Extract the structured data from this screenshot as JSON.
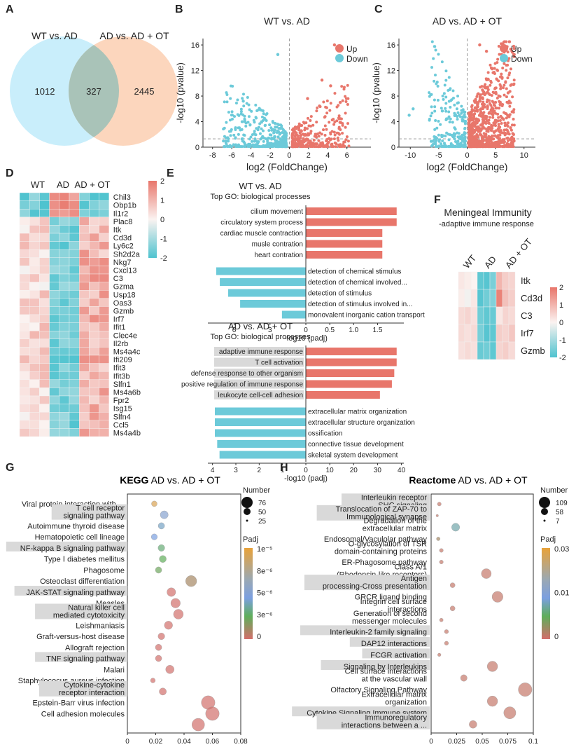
{
  "panels": {
    "A": "A",
    "B": "B",
    "C": "C",
    "D": "D",
    "E": "E",
    "F": "F",
    "G": "G",
    "H": "H"
  },
  "venn": {
    "left_label": "WT vs. AD",
    "right_label": "AD vs. AD + OT",
    "left_only": "1012",
    "overlap": "327",
    "right_only": "2445",
    "left_color": "#c9eefb",
    "right_color": "#fcd6bd",
    "overlap_color": "#a9c3b8"
  },
  "volcano_b": {
    "title": "WT vs. AD",
    "xlabel": "log2 (FoldChange)",
    "ylabel": "-log10 (pvalue)",
    "xticks": [
      "-8",
      "-6",
      "-4",
      "-2",
      "0",
      "2",
      "4",
      "6"
    ],
    "yticks": [
      "0",
      "4",
      "8",
      "12",
      "16"
    ],
    "legend_up": "Up",
    "legend_down": "Down",
    "up_color": "#e8766b",
    "down_color": "#6ccad9"
  },
  "volcano_c": {
    "title": "AD vs. AD + OT",
    "xlabel": "log2 (FoldChange)",
    "ylabel": "-log10 (pvalue)",
    "xticks": [
      "-10",
      "-5",
      "0",
      "5",
      "10"
    ],
    "yticks": [
      "0",
      "4",
      "8",
      "12",
      "16"
    ],
    "legend_up": "Up",
    "legend_down": "Down"
  },
  "heatmap_d": {
    "groups": [
      "WT",
      "AD",
      "AD + OT"
    ],
    "genes": [
      "Chil3",
      "Obp1b",
      "Il1r2",
      "Plac8",
      "Itk",
      "Cd3d",
      "Ly6c2",
      "Sh2d2a",
      "Nkg7",
      "Cxcl13",
      "C3",
      "Gzma",
      "Usp18",
      "Oas3",
      "Gzmb",
      "Irf7",
      "Ifit1",
      "Clec4e",
      "Il2rb",
      "Ms4a4c",
      "Ifi209",
      "Ifit3",
      "Ifit3b",
      "Slfn1",
      "Ms4a6b",
      "Fpr2",
      "Isg15",
      "Slfn4",
      "Ccl5",
      "Ms4a4b"
    ],
    "scale_labels": [
      "2",
      "1",
      "0",
      "-1",
      "-2"
    ],
    "high_color": "#e8766b",
    "low_color": "#4fc3cf"
  },
  "go_wt": {
    "title": "WT vs. AD",
    "subtitle": "Top GO: biological processes",
    "up_terms": [
      "cilium movement",
      "circulatory system process",
      "cardiac muscle contraction",
      "musle contration",
      "heart contration"
    ],
    "up_values": [
      1.9,
      1.9,
      1.6,
      1.6,
      1.6
    ],
    "down_terms": [
      "detection of chemical stimulus",
      "detection of chemical involved...",
      "detection of stimulus",
      "detection of stimulus involved in...",
      "monovalent inorganic cation transport"
    ],
    "down_values": [
      7.5,
      7.2,
      6.5,
      5.5,
      2.0
    ],
    "left_ticks": [
      "6",
      "3",
      "0"
    ],
    "right_ticks": [
      "0.5",
      "1.0",
      "1.5"
    ],
    "xlabel": "-log10 (padj)"
  },
  "go_ot": {
    "title": "AD vs. AD + OT",
    "subtitle": "Top GO: biological processes",
    "up_terms": [
      "adaptive immune response",
      "T cell activation",
      "defense response to other organism",
      "positive  regulation of immune response",
      "leukocyte cell-cell adhesion"
    ],
    "up_values": [
      38,
      38,
      37,
      36,
      31
    ],
    "down_terms": [
      "extracellular matrix organization",
      "extracellular structure organization",
      "ossification",
      "connective tissue development",
      "skeletal system development"
    ],
    "down_values": [
      3.9,
      3.9,
      3.9,
      3.8,
      3.7
    ],
    "left_ticks": [
      "4",
      "3",
      "2",
      "1",
      "0"
    ],
    "right_ticks": [
      "10",
      "20",
      "30",
      "40"
    ],
    "xlabel": "-log10 (padj)"
  },
  "heatmap_f": {
    "title": "Meningeal  Immunity",
    "subtitle": "-adaptive immune response",
    "groups": [
      "WT",
      "AD",
      "AD + OT"
    ],
    "genes": [
      "Itk",
      "Cd3d",
      "C3",
      "Irf7",
      "Gzmb"
    ],
    "scale_labels": [
      "2",
      "1",
      "0",
      "-1",
      "-2"
    ]
  },
  "kegg": {
    "title_bold": "KEGG",
    "title_rest": " AD vs. AD + OT",
    "size_title": "Number",
    "size_labels": [
      "76",
      "50",
      "25"
    ],
    "color_title": "Padj",
    "color_labels": [
      "1e⁻⁵",
      "8e⁻⁶",
      "5e⁻⁶",
      "3e⁻⁶",
      "0"
    ],
    "xticks": [
      "0",
      "0.02",
      "0.04",
      "0.06",
      "0.08"
    ]
  },
  "reactome": {
    "title_bold": "Reactome",
    "title_rest": " AD vs. AD + OT",
    "size_title": "Number",
    "size_labels": [
      "109",
      "58",
      "7"
    ],
    "color_title": "Padj",
    "color_labels": [
      "0.03",
      "0.01",
      "0"
    ],
    "xticks": [
      "0",
      "0.025",
      "0.05",
      "0.075",
      "0.1"
    ]
  },
  "chart_data": [
    {
      "type": "bar",
      "title": "WT vs. AD",
      "terms": [
        "cilium movement",
        "circulatory system process",
        "cardiac muscle contraction",
        "musle contration",
        "heart contration",
        "detection of chemical stimulus",
        "detection of chemical involved...",
        "detection of stimulus",
        "detection of stimulus involved in...",
        "monovalent inorganic cation transport"
      ],
      "values": [
        1.9,
        1.9,
        1.6,
        1.6,
        1.6,
        7.5,
        7.2,
        6.5,
        5.5,
        2.0
      ],
      "xlabel": "-log10 (padj)"
    },
    {
      "type": "bar",
      "title": "AD vs. AD + OT",
      "terms": [
        "adaptive immune response",
        "T cell activation",
        "defense response to other organism",
        "positive  regulation of immune response",
        "leukocyte cell-cell adhesion",
        "extracellular matrix organization",
        "extracellular structure organization",
        "ossification",
        "connective tissue development",
        "skeletal system development"
      ],
      "values": [
        38,
        38,
        37,
        36,
        31,
        3.9,
        3.9,
        3.9,
        3.8,
        3.7
      ],
      "xlabel": "-log10 (padj)"
    },
    {
      "type": "scatter",
      "title": "KEGG AD vs. AD + OT",
      "xlim": [
        0,
        0.08
      ],
      "terms": [
        {
          "label": "Viral protein interaction with ...",
          "x": 0.019,
          "n": 25,
          "padj": 9.5e-06,
          "box": false
        },
        {
          "label": "T cell receptor signaling pathway",
          "x": 0.026,
          "n": 40,
          "padj": 6e-06,
          "box": true
        },
        {
          "label": "Autoimmune thyroid disease",
          "x": 0.024,
          "n": 30,
          "padj": 4.5e-06,
          "box": false
        },
        {
          "label": "Hematopoietic cell lineage",
          "x": 0.019,
          "n": 28,
          "padj": 5e-06,
          "box": false
        },
        {
          "label": "NF-kappa B signaling pathway",
          "x": 0.024,
          "n": 32,
          "padj": 3e-06,
          "box": true
        },
        {
          "label": "Type Ⅰ diabetes mellitus",
          "x": 0.025,
          "n": 34,
          "padj": 2.5e-06,
          "box": false
        },
        {
          "label": "Phagosome",
          "x": 0.022,
          "n": 30,
          "padj": 2.2e-06,
          "box": false
        },
        {
          "label": "Osteoclast differentiation",
          "x": 0.045,
          "n": 60,
          "padj": 1e-06,
          "box": false
        },
        {
          "label": "JAK-STAT signaling pathway",
          "x": 0.031,
          "n": 45,
          "padj": 5e-08,
          "box": true
        },
        {
          "label": "Measles",
          "x": 0.034,
          "n": 50,
          "padj": 5e-08,
          "box": false
        },
        {
          "label": "Natural killer cell mediated cytotoxicity",
          "x": 0.036,
          "n": 52,
          "padj": 5e-08,
          "box": true
        },
        {
          "label": "Leishmaniasis",
          "x": 0.029,
          "n": 42,
          "padj": 5e-08,
          "box": false
        },
        {
          "label": "Graft-versus-host disease",
          "x": 0.024,
          "n": 32,
          "padj": 5e-08,
          "box": false
        },
        {
          "label": "Allograft rejection",
          "x": 0.022,
          "n": 30,
          "padj": 5e-08,
          "box": false
        },
        {
          "label": "TNF signaling pathway",
          "x": 0.022,
          "n": 30,
          "padj": 5e-08,
          "box": true
        },
        {
          "label": "Malari",
          "x": 0.03,
          "n": 43,
          "padj": 5e-08,
          "box": false
        },
        {
          "label": "Staphylococus aureus infection",
          "x": 0.018,
          "n": 20,
          "padj": 5e-08,
          "box": false
        },
        {
          "label": "Cytokine-cytokine receptor interaction",
          "x": 0.025,
          "n": 35,
          "padj": 5e-08,
          "box": true
        },
        {
          "label": "Epstein-Barr virus infection",
          "x": 0.057,
          "n": 76,
          "padj": 5e-08,
          "box": false
        },
        {
          "label": "Cell adhesion molecules",
          "x": 0.06,
          "n": 76,
          "padj": 5e-08,
          "box": false
        },
        {
          "label": "",
          "x": 0.05,
          "n": 70,
          "padj": 5e-08,
          "box": false
        }
      ]
    },
    {
      "type": "scatter",
      "title": "Reactome AD vs. AD + OT",
      "xlim": [
        0,
        0.1
      ],
      "terms": [
        {
          "label": "Interleukin receptor SHC signaling",
          "x": 0.008,
          "n": 20,
          "padj": 0.001,
          "box": true
        },
        {
          "label": "Translocation of ZAP-70 to Immunological synapse",
          "x": 0.006,
          "n": 7,
          "padj": 0.001,
          "box": true
        },
        {
          "label": "Degradation of the extracellular matrix",
          "x": 0.024,
          "n": 58,
          "padj": 0.012,
          "box": false
        },
        {
          "label": "Endosomal/Vaculolar pathway",
          "x": 0.007,
          "n": 18,
          "padj": 0.003,
          "box": false
        },
        {
          "label": "O-glycosylation of TSR domain-containing proteins",
          "x": 0.01,
          "n": 20,
          "padj": 0.001,
          "box": false
        },
        {
          "label": "ER-Phagosome pathway",
          "x": 0.01,
          "n": 20,
          "padj": 0.001,
          "box": false
        },
        {
          "label": "Class A/1 (Rhodopsin-like receptors)",
          "x": 0.054,
          "n": 75,
          "padj": 0.001,
          "box": false
        },
        {
          "label": "Antigen processing-Cross presentation",
          "x": 0.021,
          "n": 30,
          "padj": 0.001,
          "box": true
        },
        {
          "label": "GRCR ligand binding",
          "x": 0.065,
          "n": 85,
          "padj": 0.001,
          "box": false
        },
        {
          "label": "Integrin cell surface interactions",
          "x": 0.021,
          "n": 30,
          "padj": 0.001,
          "box": false
        },
        {
          "label": "Generation of second messenger molecules",
          "x": 0.01,
          "n": 18,
          "padj": 0.001,
          "box": false
        },
        {
          "label": "Interleukin-2 family signaling",
          "x": 0.015,
          "n": 22,
          "padj": 0.001,
          "box": true
        },
        {
          "label": "DAP12 interactions",
          "x": 0.015,
          "n": 22,
          "padj": 0.001,
          "box": true
        },
        {
          "label": "FCGR activation",
          "x": 0.008,
          "n": 15,
          "padj": 0.001,
          "box": true
        },
        {
          "label": "Signaling by Interleukins",
          "x": 0.06,
          "n": 80,
          "padj": 0.001,
          "box": true
        },
        {
          "label": "Cell surface interactions at the vascular wall",
          "x": 0.032,
          "n": 45,
          "padj": 0.001,
          "box": false
        },
        {
          "label": "Olfactory Signaling Pathway",
          "x": 0.092,
          "n": 109,
          "padj": 0.001,
          "box": false
        },
        {
          "label": "Extracellular matrix organization",
          "x": 0.06,
          "n": 80,
          "padj": 0.001,
          "box": false
        },
        {
          "label": "Cytokine Signaling Immune system",
          "x": 0.077,
          "n": 95,
          "padj": 0.001,
          "box": true
        },
        {
          "label": "Immunoregulatory interactions between a ...",
          "x": 0.041,
          "n": 55,
          "padj": 0.001,
          "box": true
        }
      ]
    }
  ]
}
